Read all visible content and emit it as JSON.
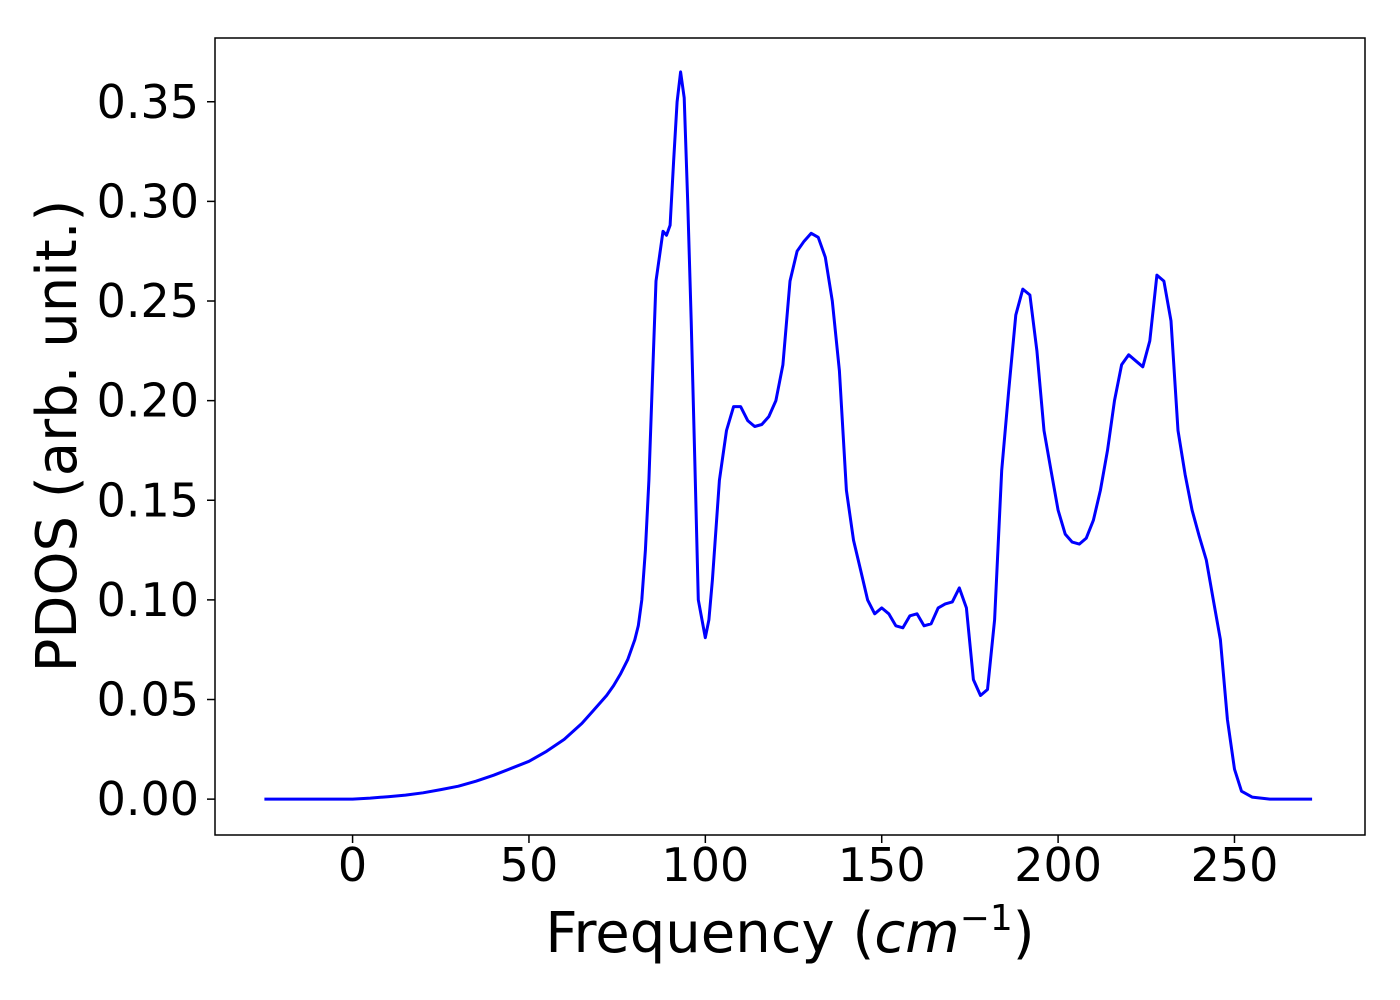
{
  "chart_data": {
    "type": "line",
    "title": "",
    "xlabel": "Frequency",
    "xlabel_unit": "cm",
    "xlabel_unit_exp": "−1",
    "ylabel": "PDOS (arb. unit.)",
    "xlim": [
      -39,
      287
    ],
    "ylim": [
      -0.018,
      0.382
    ],
    "xticks": [
      0,
      50,
      100,
      150,
      200,
      250
    ],
    "yticks": [
      0.0,
      0.05,
      0.1,
      0.15,
      0.2,
      0.25,
      0.3,
      0.35
    ],
    "xtick_labels": [
      "0",
      "50",
      "100",
      "150",
      "200",
      "250"
    ],
    "ytick_labels": [
      "0.00",
      "0.05",
      "0.10",
      "0.15",
      "0.20",
      "0.25",
      "0.30",
      "0.35"
    ],
    "grid": false,
    "legend": "none",
    "line_color": "#0000ff",
    "series": [
      {
        "x": [
          -25,
          -10,
          0,
          5,
          10,
          15,
          20,
          25,
          30,
          35,
          40,
          45,
          50,
          55,
          60,
          65,
          68,
          72,
          74,
          76,
          78,
          80,
          81,
          82,
          83,
          84,
          85,
          86,
          88,
          89,
          90,
          91,
          92,
          93,
          94,
          95,
          96,
          97,
          98,
          100,
          101,
          102,
          104,
          106,
          108,
          110,
          112,
          114,
          116,
          118,
          120,
          122,
          124,
          126,
          128,
          130,
          132,
          134,
          136,
          138,
          140,
          142,
          144,
          146,
          148,
          150,
          152,
          154,
          156,
          158,
          160,
          162,
          164,
          166,
          168,
          170,
          172,
          174,
          176,
          178,
          180,
          182,
          184,
          186,
          188,
          190,
          192,
          194,
          196,
          198,
          200,
          202,
          204,
          206,
          208,
          210,
          212,
          214,
          216,
          218,
          220,
          222,
          224,
          226,
          228,
          230,
          232,
          234,
          236,
          238,
          240,
          242,
          244,
          246,
          248,
          250,
          252,
          255,
          260,
          272
        ],
        "y": [
          0.0,
          0.0,
          0.0,
          0.0005,
          0.0012,
          0.002,
          0.0032,
          0.0048,
          0.0065,
          0.009,
          0.012,
          0.0155,
          0.019,
          0.024,
          0.03,
          0.038,
          0.044,
          0.052,
          0.057,
          0.063,
          0.07,
          0.08,
          0.087,
          0.1,
          0.125,
          0.16,
          0.21,
          0.26,
          0.285,
          0.283,
          0.288,
          0.32,
          0.35,
          0.365,
          0.352,
          0.3,
          0.24,
          0.17,
          0.1,
          0.081,
          0.09,
          0.11,
          0.16,
          0.185,
          0.197,
          0.197,
          0.19,
          0.187,
          0.188,
          0.192,
          0.2,
          0.218,
          0.26,
          0.275,
          0.28,
          0.284,
          0.282,
          0.272,
          0.25,
          0.215,
          0.155,
          0.13,
          0.115,
          0.1,
          0.093,
          0.096,
          0.093,
          0.087,
          0.086,
          0.092,
          0.093,
          0.087,
          0.088,
          0.096,
          0.098,
          0.099,
          0.106,
          0.096,
          0.06,
          0.052,
          0.055,
          0.09,
          0.165,
          0.205,
          0.243,
          0.256,
          0.253,
          0.225,
          0.185,
          0.165,
          0.145,
          0.133,
          0.129,
          0.128,
          0.131,
          0.14,
          0.155,
          0.175,
          0.2,
          0.218,
          0.223,
          0.22,
          0.217,
          0.23,
          0.263,
          0.26,
          0.24,
          0.185,
          0.163,
          0.145,
          0.132,
          0.12,
          0.1,
          0.08,
          0.04,
          0.015,
          0.004,
          0.001,
          0.0,
          0.0
        ]
      }
    ]
  }
}
